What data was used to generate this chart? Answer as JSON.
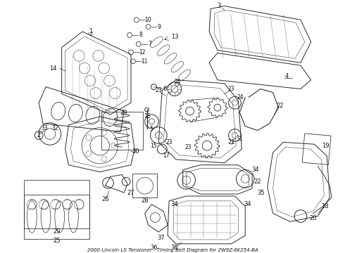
{
  "title": "2000 Lincoln LS Tensioner - Timing Belt Diagram for 2W9Z-6K254-BA",
  "background_color": "#ffffff",
  "line_color": "#2a2a2a",
  "text_color": "#111111",
  "fig_width": 4.9,
  "fig_height": 3.6,
  "dpi": 100
}
